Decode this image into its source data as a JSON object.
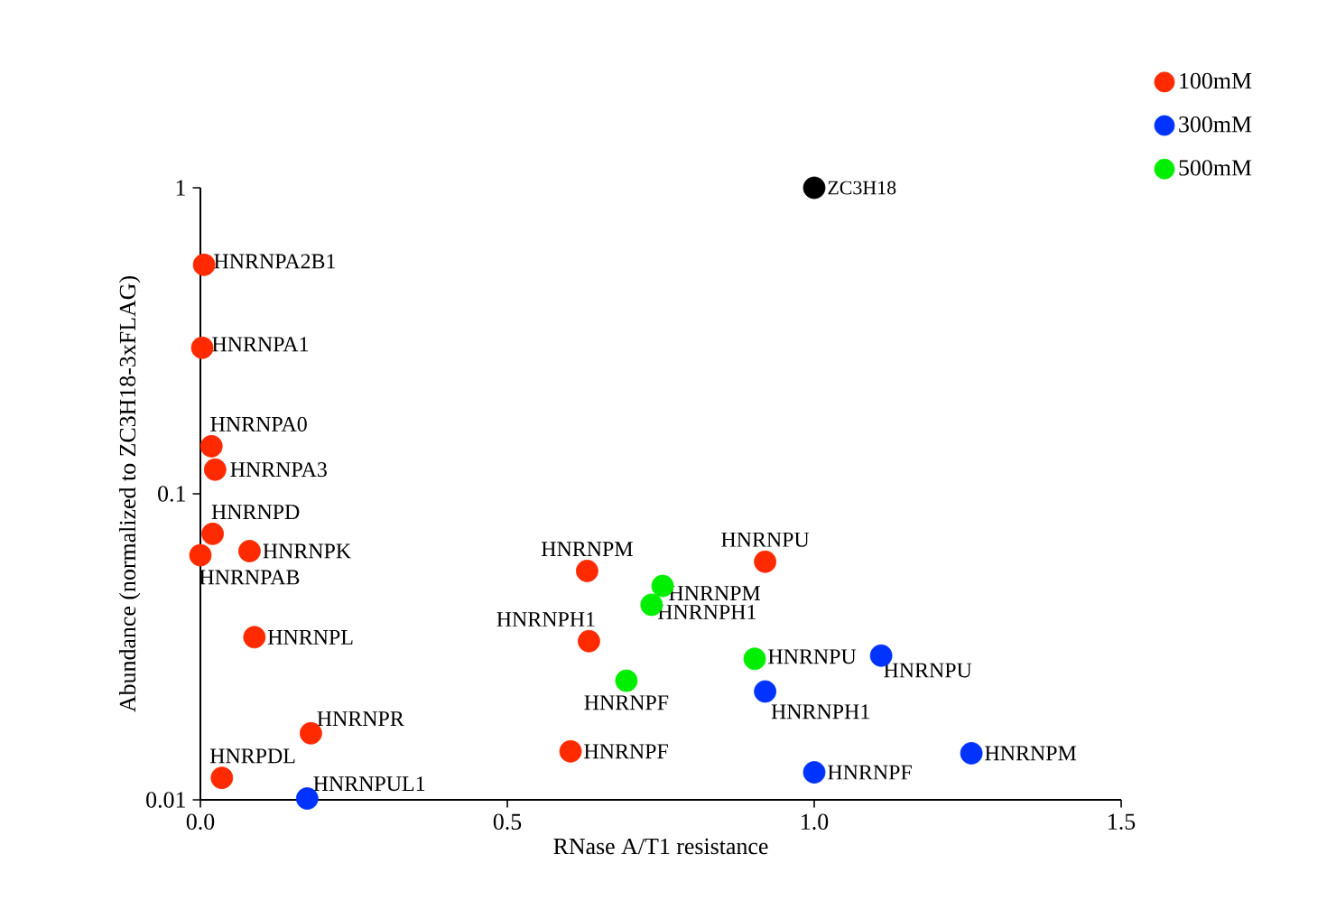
{
  "chart_data": {
    "type": "scatter",
    "xlabel": "RNase A/T1 resistance",
    "ylabel": "Abundance (normalized to ZC3H18-3xFLAG)",
    "log": "y",
    "xlim": [
      0,
      1.5
    ],
    "xticks": [
      {
        "value": 0,
        "label": "0.0"
      },
      0.5,
      {
        "value": 1,
        "label": "1.0"
      },
      1.5
    ],
    "ylim": [
      0.01,
      1
    ],
    "yticks": [
      0.01,
      0.1,
      1
    ],
    "grid": false,
    "legend": "top right",
    "marker": "circle",
    "series": [
      {
        "name": "100mM",
        "color": "#ff2a00",
        "x": [
          0.006,
          0.003,
          0.018,
          0.024,
          0.02,
          0.0,
          0.08,
          0.088,
          0.18,
          0.035,
          0.63,
          0.92,
          0.633,
          0.603
        ],
        "values": [
          0.56,
          0.3,
          0.143,
          0.12,
          0.074,
          0.063,
          0.065,
          0.034,
          0.0165,
          0.0118,
          0.056,
          0.06,
          0.033,
          0.0144
        ]
      },
      {
        "name": "300mM",
        "color": "#0033ff",
        "x": [
          0.174,
          1.109,
          0.92,
          1.0,
          1.256
        ],
        "values": [
          0.0101,
          0.0296,
          0.0226,
          0.0123,
          0.0142
        ]
      },
      {
        "name": "500mM",
        "color": "#00ee00",
        "x": [
          0.753,
          0.735,
          0.694,
          0.903
        ],
        "values": [
          0.05,
          0.0434,
          0.0245,
          0.0289
        ]
      },
      {
        "color": "#000000",
        "x": [
          1.0
        ],
        "values": [
          1.0
        ]
      }
    ],
    "annotations": [
      {
        "text": "HNRNPA2B1",
        "x": 0.006,
        "y": 0.56
      },
      {
        "text": "HNRNPA1",
        "x": 0.003,
        "y": 0.3
      },
      {
        "text": "HNRNPA0",
        "x": 0.018,
        "y": 0.143
      },
      {
        "text": "HNRNPA3",
        "x": 0.024,
        "y": 0.12
      },
      {
        "text": "HNRNPD",
        "x": 0.02,
        "y": 0.074
      },
      {
        "text": "HNRNPAB",
        "x": 0.0,
        "y": 0.063
      },
      {
        "text": "HNRNPK",
        "x": 0.08,
        "y": 0.065
      },
      {
        "text": "HNRNPL",
        "x": 0.088,
        "y": 0.034
      },
      {
        "text": "HNRNPR",
        "x": 0.18,
        "y": 0.0165
      },
      {
        "text": "HNRPDL",
        "x": 0.035,
        "y": 0.0118
      },
      {
        "text": "HNRNPM",
        "x": 0.63,
        "y": 0.056
      },
      {
        "text": "HNRNPU",
        "x": 0.92,
        "y": 0.06
      },
      {
        "text": "HNRNPH1",
        "x": 0.633,
        "y": 0.033
      },
      {
        "text": "HNRNPF",
        "x": 0.603,
        "y": 0.0144
      },
      {
        "text": "HNRNPUL1",
        "x": 0.174,
        "y": 0.0101
      },
      {
        "text": "HNRNPU",
        "x": 1.109,
        "y": 0.0296
      },
      {
        "text": "HNRNPH1",
        "x": 0.92,
        "y": 0.0226
      },
      {
        "text": "HNRNPF",
        "x": 1.0,
        "y": 0.0123
      },
      {
        "text": "HNRNPM",
        "x": 1.256,
        "y": 0.0142
      },
      {
        "text": "HNRNPM",
        "x": 0.753,
        "y": 0.05
      },
      {
        "text": "HNRNPH1",
        "x": 0.735,
        "y": 0.0434
      },
      {
        "text": "HNRNPF",
        "x": 0.694,
        "y": 0.0245
      },
      {
        "text": "HNRNPU",
        "x": 0.903,
        "y": 0.0289
      },
      {
        "text": "ZC3H18",
        "x": 1.0,
        "y": 1.0
      }
    ]
  }
}
